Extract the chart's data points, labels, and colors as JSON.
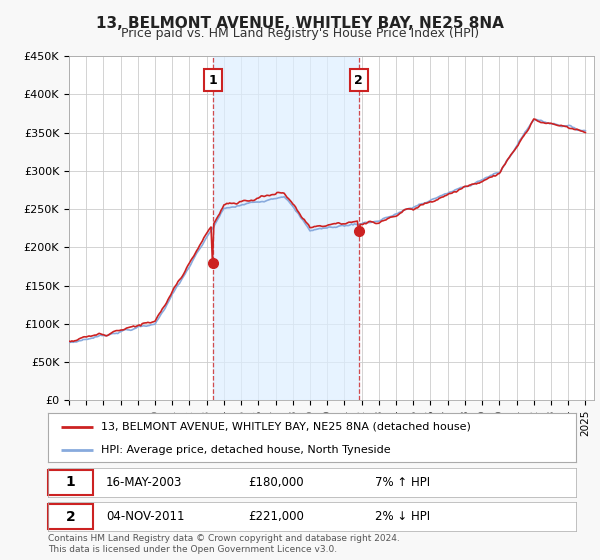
{
  "title": "13, BELMONT AVENUE, WHITLEY BAY, NE25 8NA",
  "subtitle": "Price paid vs. HM Land Registry's House Price Index (HPI)",
  "ylim": [
    0,
    450000
  ],
  "yticks": [
    0,
    50000,
    100000,
    150000,
    200000,
    250000,
    300000,
    350000,
    400000,
    450000
  ],
  "ytick_labels": [
    "£0",
    "£50K",
    "£100K",
    "£150K",
    "£200K",
    "£250K",
    "£300K",
    "£350K",
    "£400K",
    "£450K"
  ],
  "background_color": "#ffffff",
  "grid_color": "#cccccc",
  "shade_color": "#ddeeff",
  "sale1": {
    "date_num": 2003.37,
    "price": 180000,
    "label": "1",
    "date_str": "16-MAY-2003",
    "price_str": "£180,000",
    "hpi_rel": "7% ↑ HPI"
  },
  "sale2": {
    "date_num": 2011.84,
    "price": 221000,
    "label": "2",
    "date_str": "04-NOV-2011",
    "price_str": "£221,000",
    "hpi_rel": "2% ↓ HPI"
  },
  "legend_line1": "13, BELMONT AVENUE, WHITLEY BAY, NE25 8NA (detached house)",
  "legend_line2": "HPI: Average price, detached house, North Tyneside",
  "footer": "Contains HM Land Registry data © Crown copyright and database right 2024.\nThis data is licensed under the Open Government Licence v3.0.",
  "red_color": "#cc2222",
  "blue_color": "#88aadd",
  "xlim_start": 1995,
  "xlim_end": 2025.5
}
